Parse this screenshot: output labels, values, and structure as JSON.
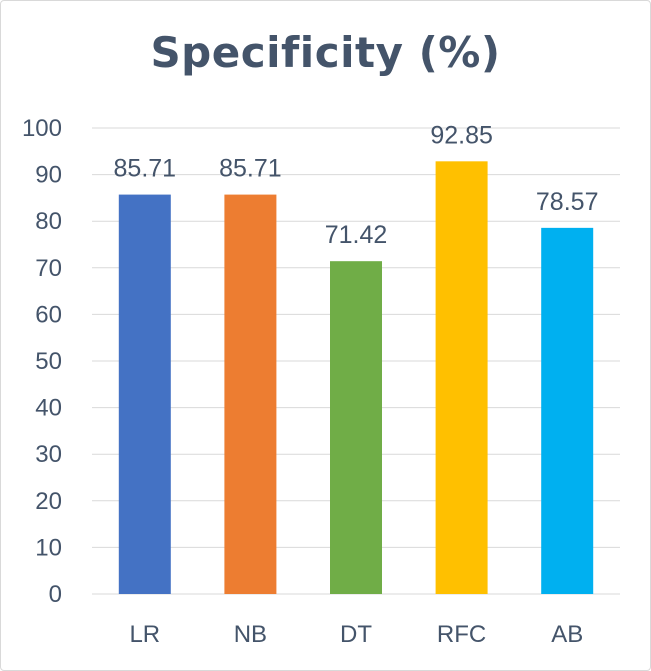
{
  "chart_data": {
    "type": "bar",
    "title": "Specificity (%)",
    "categories": [
      "LR",
      "NB",
      "DT",
      "RFC",
      "AB"
    ],
    "values": [
      85.71,
      85.71,
      71.42,
      92.85,
      78.57
    ],
    "data_labels": [
      "85.71",
      "85.71",
      "71.42",
      "92.85",
      "78.57"
    ],
    "colors": [
      "#4472c4",
      "#ed7d31",
      "#70ad47",
      "#ffc000",
      "#00b0f0"
    ],
    "ylim": [
      0,
      100
    ],
    "yticks": [
      0,
      10,
      20,
      30,
      40,
      50,
      60,
      70,
      80,
      90,
      100
    ],
    "grid": true,
    "legend": "none",
    "xlabel": "",
    "ylabel": ""
  }
}
